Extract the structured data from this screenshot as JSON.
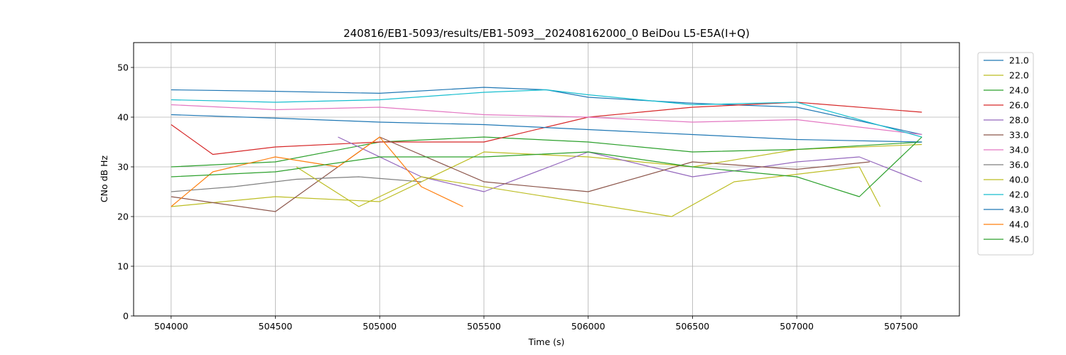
{
  "chart_data": {
    "type": "line",
    "title": "240816/EB1-5093/results/EB1-5093__202408162000_0 BeiDou L5-E5A(I+Q)",
    "xlabel": "Time (s)",
    "ylabel": "CNo dB Hz",
    "xlim": [
      503820,
      507780
    ],
    "ylim": [
      0,
      55
    ],
    "xticks": [
      504000,
      504500,
      505000,
      505500,
      506000,
      506500,
      507000,
      507500
    ],
    "yticks": [
      0,
      10,
      20,
      30,
      40,
      50
    ],
    "grid": true,
    "legend_position": "top-right outside",
    "series": [
      {
        "name": "21.0",
        "color": "#1f77b4",
        "x": [
          504000,
          504500,
          505000,
          505500,
          505800,
          506000,
          506500,
          507000,
          507600
        ],
        "y": [
          45.5,
          45.2,
          44.8,
          46.0,
          45.5,
          44.0,
          42.8,
          42.0,
          36.5
        ]
      },
      {
        "name": "22.0",
        "color": "#bcbd22",
        "x": [
          504000,
          504500,
          505000,
          505500,
          506000,
          506500,
          507000,
          507600
        ],
        "y": [
          22.0,
          24.0,
          23.0,
          33.0,
          32.0,
          30.0,
          33.5,
          34.5
        ]
      },
      {
        "name": "24.0",
        "color": "#2ca02c",
        "x": [
          504000,
          504500,
          505000,
          505500,
          506000,
          506500,
          507000,
          507600
        ],
        "y": [
          30.0,
          31.0,
          35.0,
          36.0,
          35.0,
          33.0,
          33.5,
          35.0
        ]
      },
      {
        "name": "26.0",
        "color": "#d62728",
        "x": [
          504000,
          504200,
          504500,
          505000,
          505500,
          506000,
          506500,
          507000,
          507600
        ],
        "y": [
          38.5,
          32.5,
          34.0,
          35.0,
          35.0,
          40.0,
          42.0,
          43.0,
          41.0
        ]
      },
      {
        "name": "28.0",
        "color": "#9467bd",
        "x": [
          504800,
          505200,
          505500,
          506000,
          506500,
          507000,
          507300,
          507600
        ],
        "y": [
          36.0,
          28.0,
          25.0,
          33.0,
          28.0,
          31.0,
          32.0,
          27.0
        ]
      },
      {
        "name": "33.0",
        "color": "#8c564b",
        "x": [
          504000,
          504500,
          505000,
          505500,
          506000,
          506500,
          507000,
          507350
        ],
        "y": [
          24.0,
          21.0,
          36.0,
          27.0,
          25.0,
          31.0,
          29.5,
          31.0
        ]
      },
      {
        "name": "34.0",
        "color": "#e377c2",
        "x": [
          504000,
          504500,
          505000,
          505500,
          506000,
          506500,
          507000,
          507600
        ],
        "y": [
          42.5,
          41.5,
          42.0,
          40.5,
          40.0,
          39.0,
          39.5,
          36.5
        ]
      },
      {
        "name": "36.0",
        "color": "#7f7f7f",
        "x": [
          504000,
          504300,
          504600,
          504900,
          505200
        ],
        "y": [
          25.0,
          26.0,
          27.5,
          28.0,
          27.0
        ]
      },
      {
        "name": "40.0",
        "color": "#bcbd22",
        "x": [
          504600,
          504900,
          505200,
          506400,
          506700,
          507300,
          507400
        ],
        "y": [
          30.0,
          22.0,
          28.0,
          20.0,
          27.0,
          30.0,
          22.0
        ]
      },
      {
        "name": "42.0",
        "color": "#17becf",
        "x": [
          504000,
          504500,
          505000,
          505500,
          505800,
          506000,
          506500,
          507000,
          507600
        ],
        "y": [
          43.5,
          43.0,
          43.5,
          45.0,
          45.5,
          44.5,
          42.5,
          43.0,
          36.0
        ]
      },
      {
        "name": "43.0",
        "color": "#1f77b4",
        "x": [
          504000,
          504500,
          505000,
          505500,
          506000,
          506500,
          507000,
          507600
        ],
        "y": [
          40.5,
          39.8,
          39.0,
          38.5,
          37.5,
          36.5,
          35.5,
          35.0
        ]
      },
      {
        "name": "44.0",
        "color": "#ff7f0e",
        "x": [
          504000,
          504200,
          504500,
          504800,
          505000,
          505200,
          505400
        ],
        "y": [
          22.0,
          29.0,
          32.0,
          30.0,
          36.0,
          26.0,
          22.0
        ]
      },
      {
        "name": "45.0",
        "color": "#2ca02c",
        "x": [
          504000,
          504500,
          505000,
          505500,
          506000,
          506500,
          507000,
          507300,
          507600
        ],
        "y": [
          28.0,
          29.0,
          32.0,
          32.0,
          33.0,
          30.0,
          28.0,
          24.0,
          36.0
        ]
      }
    ]
  }
}
